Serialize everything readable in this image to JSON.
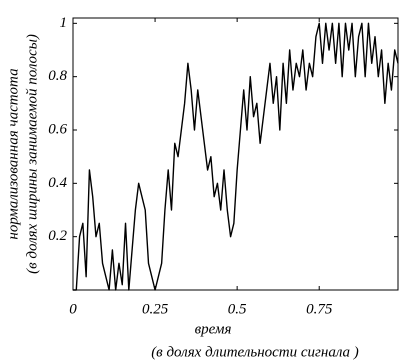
{
  "chart_data": {
    "type": "line",
    "xlabel": "время",
    "xlabel_note": "(в долях длительности сигнала )",
    "ylabel": "нормализованная частота",
    "ylabel_note": "(в долях ширины занимаемой полосы)",
    "x": [
      0,
      0.01,
      0.02,
      0.03,
      0.04,
      0.05,
      0.06,
      0.07,
      0.08,
      0.09,
      0.1,
      0.11,
      0.12,
      0.13,
      0.14,
      0.15,
      0.16,
      0.17,
      0.18,
      0.19,
      0.2,
      0.21,
      0.22,
      0.23,
      0.24,
      0.25,
      0.26,
      0.27,
      0.28,
      0.29,
      0.3,
      0.31,
      0.32,
      0.33,
      0.34,
      0.35,
      0.36,
      0.37,
      0.38,
      0.39,
      0.4,
      0.41,
      0.42,
      0.43,
      0.44,
      0.45,
      0.46,
      0.47,
      0.48,
      0.49,
      0.5,
      0.51,
      0.52,
      0.53,
      0.54,
      0.55,
      0.56,
      0.57,
      0.58,
      0.59,
      0.6,
      0.61,
      0.62,
      0.63,
      0.64,
      0.65,
      0.66,
      0.67,
      0.68,
      0.69,
      0.7,
      0.71,
      0.72,
      0.73,
      0.74,
      0.75,
      0.76,
      0.77,
      0.78,
      0.79,
      0.8,
      0.81,
      0.82,
      0.83,
      0.84,
      0.85,
      0.86,
      0.87,
      0.88,
      0.89,
      0.9,
      0.91,
      0.92,
      0.93,
      0.94,
      0.95,
      0.96,
      0.97,
      0.98,
      0.99
    ],
    "series": [
      {
        "color": "#000000",
        "values": [
          0,
          0,
          0.2,
          0.25,
          0.05,
          0.45,
          0.35,
          0.2,
          0.25,
          0.1,
          0.05,
          0,
          0.15,
          0,
          0.1,
          0.02,
          0.25,
          0,
          0.15,
          0.3,
          0.4,
          0.35,
          0.3,
          0.1,
          0.05,
          0,
          0.05,
          0.1,
          0.3,
          0.45,
          0.3,
          0.55,
          0.5,
          0.6,
          0.7,
          0.85,
          0.75,
          0.6,
          0.75,
          0.65,
          0.55,
          0.45,
          0.5,
          0.35,
          0.4,
          0.3,
          0.45,
          0.3,
          0.2,
          0.25,
          0.45,
          0.6,
          0.75,
          0.6,
          0.8,
          0.65,
          0.7,
          0.55,
          0.65,
          0.75,
          0.85,
          0.7,
          0.8,
          0.6,
          0.85,
          0.7,
          0.9,
          0.75,
          0.85,
          0.8,
          0.9,
          0.75,
          0.85,
          0.8,
          0.95,
          1,
          0.85,
          1,
          0.9,
          1,
          0.85,
          1,
          0.8,
          1,
          0.9,
          1,
          0.8,
          0.95,
          1,
          0.8,
          1,
          0.85,
          0.95,
          0.8,
          0.9,
          0.7,
          0.85,
          0.75,
          0.9,
          0.85
        ]
      }
    ],
    "xlim": [
      0,
      0.99
    ],
    "ylim": [
      0,
      1.02
    ],
    "xticks": [
      0,
      0.25,
      0.5,
      0.75
    ],
    "yticks": [
      0.2,
      0.4,
      0.6,
      0.8,
      1
    ]
  }
}
